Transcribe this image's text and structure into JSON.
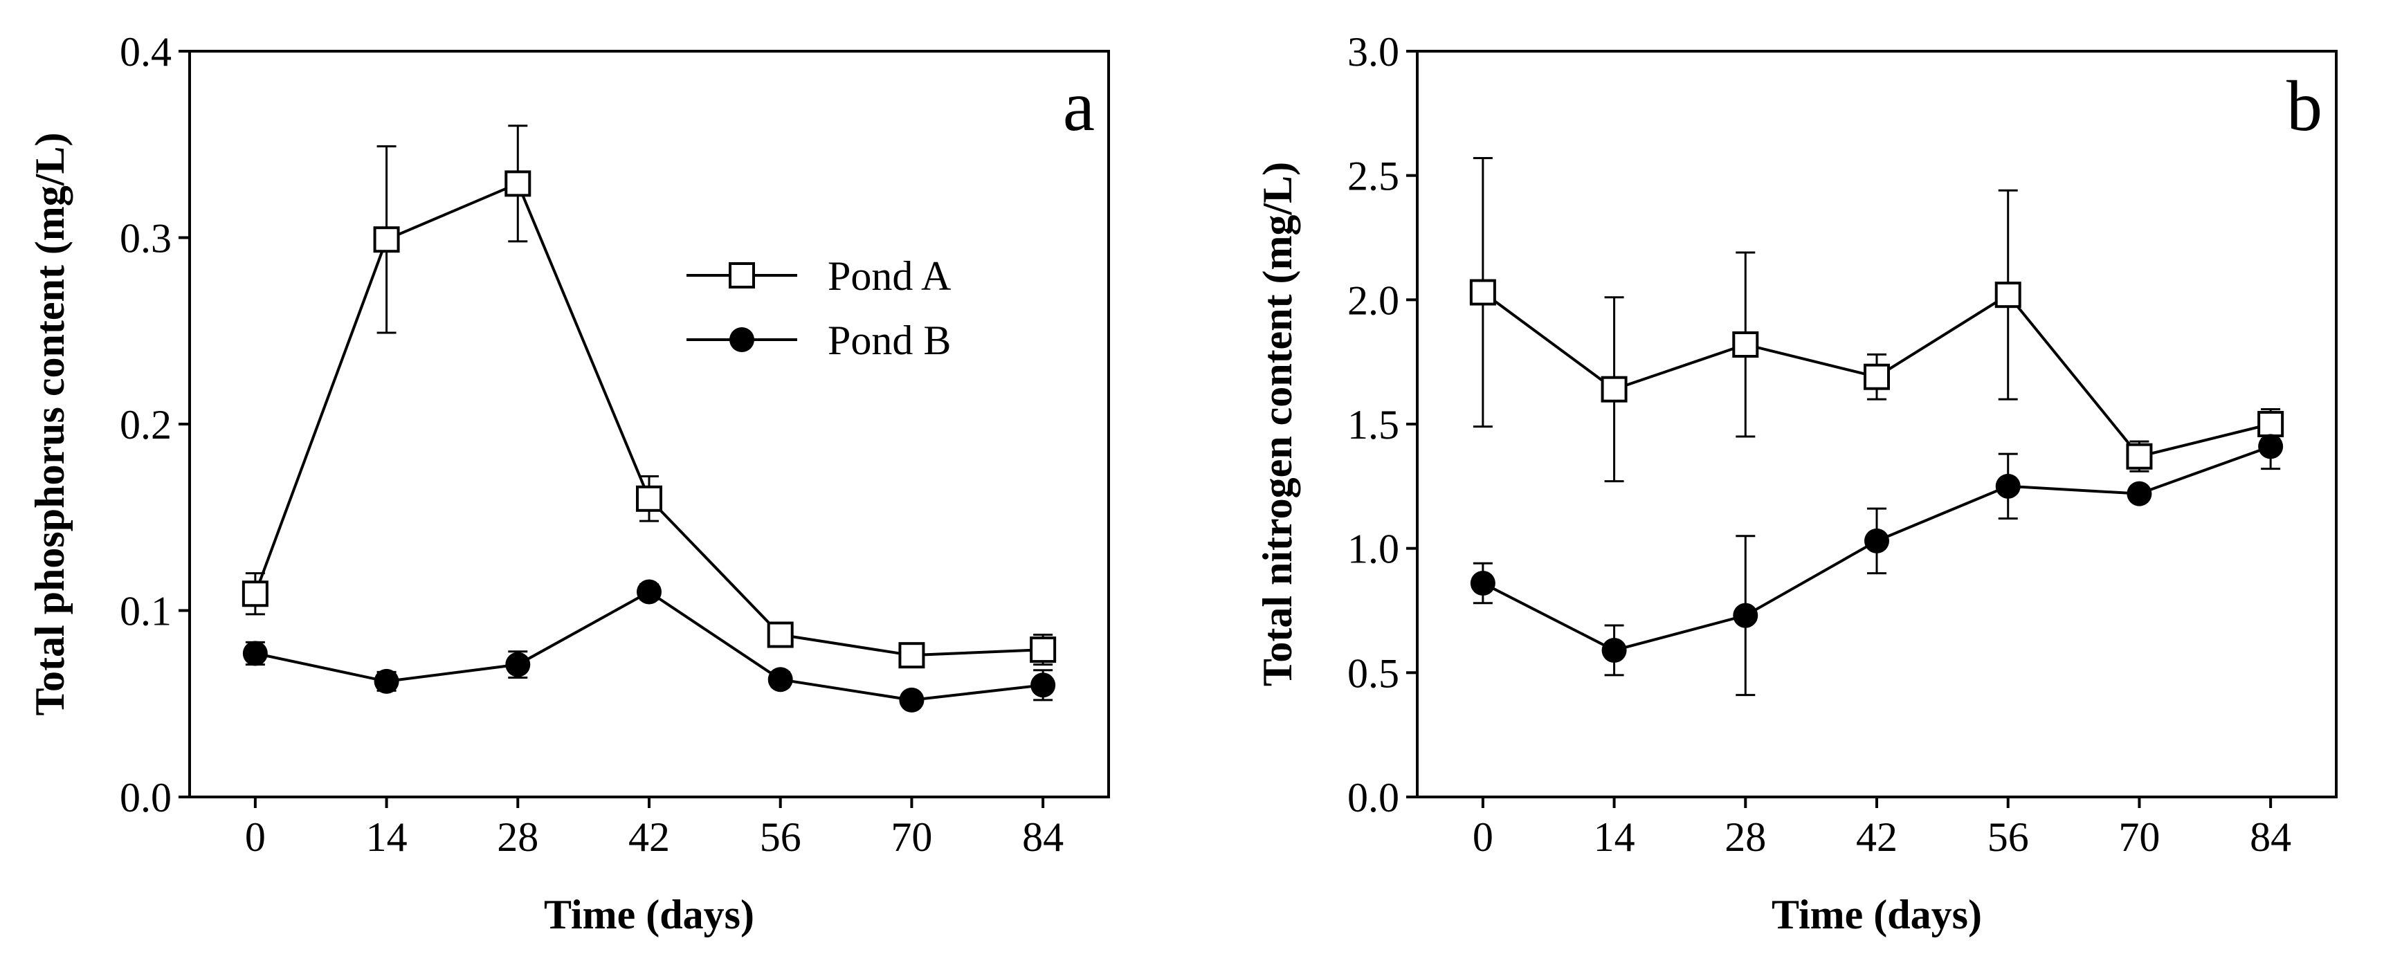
{
  "chart_data": [
    {
      "type": "line",
      "panel_label": "a",
      "title": "",
      "xlabel": "Time (days)",
      "ylabel": "Total phosphorus content (mg/L)",
      "x": [
        0,
        14,
        28,
        42,
        56,
        70,
        84
      ],
      "xticks": [
        "0",
        "14",
        "28",
        "42",
        "56",
        "70",
        "84"
      ],
      "xlim": [
        -7,
        91
      ],
      "ylim": [
        0,
        0.4
      ],
      "yticks": [
        "0.0",
        "0.1",
        "0.2",
        "0.3",
        "0.4"
      ],
      "grid": false,
      "legend_position": "upper-middle",
      "series": [
        {
          "name": "Pond A",
          "marker": "open-square",
          "values": [
            0.109,
            0.299,
            0.329,
            0.16,
            0.087,
            0.076,
            0.079
          ],
          "errors": [
            0.011,
            0.05,
            0.031,
            0.012,
            0.005,
            0.006,
            0.008
          ]
        },
        {
          "name": "Pond B",
          "marker": "filled-circle",
          "values": [
            0.077,
            0.062,
            0.071,
            0.11,
            0.063,
            0.052,
            0.06
          ],
          "errors": [
            0.006,
            0.005,
            0.007,
            0.004,
            0.004,
            0.003,
            0.008
          ]
        }
      ]
    },
    {
      "type": "line",
      "panel_label": "b",
      "title": "",
      "xlabel": "Time (days)",
      "ylabel": "Total nitrogen content (mg/L)",
      "x": [
        0,
        14,
        28,
        42,
        56,
        70,
        84
      ],
      "xticks": [
        "0",
        "14",
        "28",
        "42",
        "56",
        "70",
        "84"
      ],
      "xlim": [
        -7,
        91
      ],
      "ylim": [
        0,
        3.0
      ],
      "yticks": [
        "0.0",
        "0.5",
        "1.0",
        "1.5",
        "2.0",
        "2.5",
        "3.0"
      ],
      "grid": false,
      "series": [
        {
          "name": "Pond A",
          "marker": "open-square",
          "values": [
            2.03,
            1.64,
            1.82,
            1.69,
            2.02,
            1.37,
            1.5
          ],
          "errors": [
            0.54,
            0.37,
            0.37,
            0.09,
            0.42,
            0.06,
            0.06
          ]
        },
        {
          "name": "Pond B",
          "marker": "filled-circle",
          "values": [
            0.86,
            0.59,
            0.73,
            1.03,
            1.25,
            1.22,
            1.41
          ],
          "errors": [
            0.08,
            0.1,
            0.32,
            0.13,
            0.13,
            0.02,
            0.09
          ]
        }
      ]
    }
  ]
}
